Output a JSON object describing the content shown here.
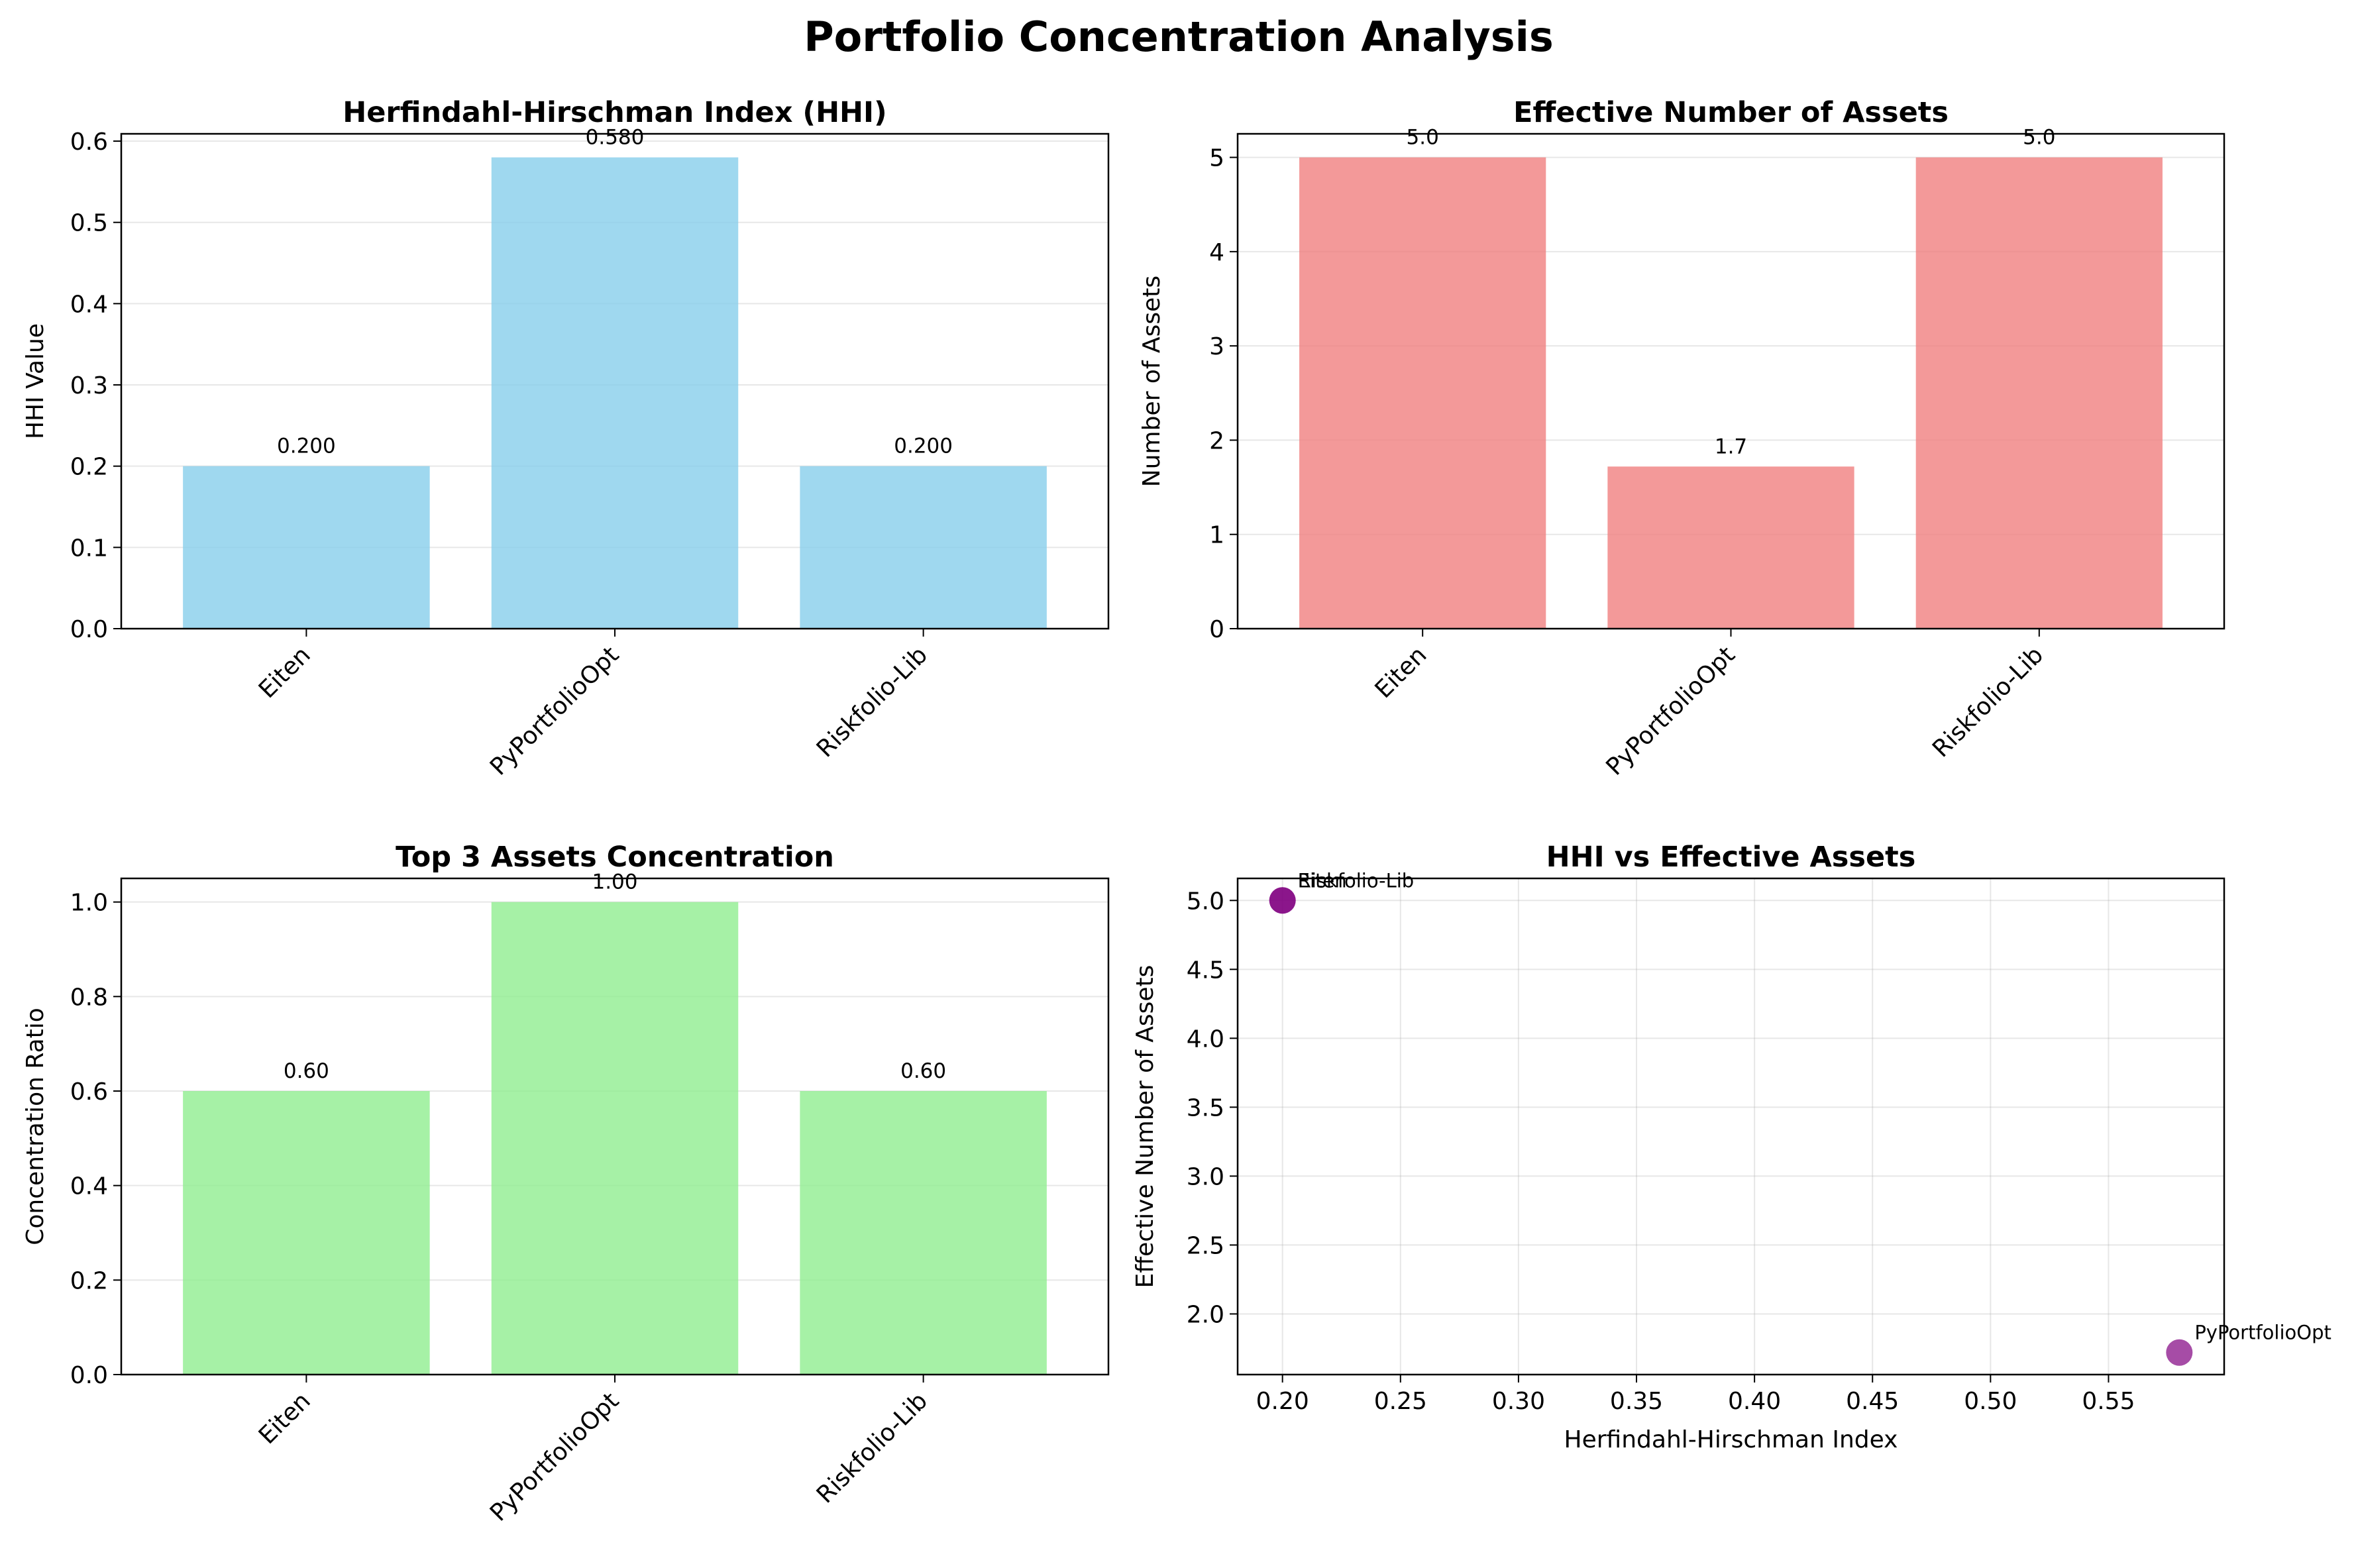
{
  "figure": {
    "title": "Portfolio Concentration Analysis"
  },
  "chart_data": [
    {
      "type": "bar",
      "title": "Herfindahl-Hirschman Index (HHI)",
      "xlabel": "",
      "ylabel": "HHI Value",
      "categories": [
        "Eiten",
        "PyPortfolioOpt",
        "Riskfolio-Lib"
      ],
      "values": [
        0.2,
        0.58,
        0.2
      ],
      "value_labels": [
        "0.200",
        "0.580",
        "0.200"
      ],
      "ylim": [
        0,
        0.609
      ],
      "yticks": [
        0,
        0.1,
        0.2,
        0.3,
        0.4,
        0.5,
        0.6
      ],
      "ytick_labels": [
        "0.0",
        "0.1",
        "0.2",
        "0.3",
        "0.4",
        "0.5",
        "0.6"
      ],
      "color": "#87ceeb",
      "grid": "y"
    },
    {
      "type": "bar",
      "title": "Effective Number of Assets",
      "xlabel": "",
      "ylabel": "Number of Assets",
      "categories": [
        "Eiten",
        "PyPortfolioOpt",
        "Riskfolio-Lib"
      ],
      "values": [
        5.0,
        1.72,
        5.0
      ],
      "value_labels": [
        "5.0",
        "1.7",
        "5.0"
      ],
      "ylim": [
        0,
        5.25
      ],
      "yticks": [
        0,
        1,
        2,
        3,
        4,
        5
      ],
      "ytick_labels": [
        "0",
        "1",
        "2",
        "3",
        "4",
        "5"
      ],
      "color": "#f08080",
      "grid": "y"
    },
    {
      "type": "bar",
      "title": "Top 3 Assets Concentration",
      "xlabel": "",
      "ylabel": "Concentration Ratio",
      "categories": [
        "Eiten",
        "PyPortfolioOpt",
        "Riskfolio-Lib"
      ],
      "values": [
        0.6,
        1.0,
        0.6
      ],
      "value_labels": [
        "0.60",
        "1.00",
        "0.60"
      ],
      "ylim": [
        0,
        1.05
      ],
      "yticks": [
        0,
        0.2,
        0.4,
        0.6,
        0.8,
        1.0
      ],
      "ytick_labels": [
        "0.0",
        "0.2",
        "0.4",
        "0.6",
        "0.8",
        "1.0"
      ],
      "color": "#90ee90",
      "grid": "y"
    },
    {
      "type": "scatter",
      "title": "HHI vs Effective Assets",
      "xlabel": "Herfindahl-Hirschman Index",
      "ylabel": "Effective Number of Assets",
      "points": [
        {
          "label": "Eiten",
          "x": 0.2,
          "y": 5.0
        },
        {
          "label": "PyPortfolioOpt",
          "x": 0.58,
          "y": 1.72
        },
        {
          "label": "Riskfolio-Lib",
          "x": 0.2,
          "y": 5.0
        }
      ],
      "xlim": [
        0.181,
        0.599
      ],
      "ylim": [
        1.56,
        5.16
      ],
      "xticks": [
        0.2,
        0.25,
        0.3,
        0.35,
        0.4,
        0.45,
        0.5,
        0.55
      ],
      "xtick_labels": [
        "0.20",
        "0.25",
        "0.30",
        "0.35",
        "0.40",
        "0.45",
        "0.50",
        "0.55"
      ],
      "yticks": [
        2.0,
        2.5,
        3.0,
        3.5,
        4.0,
        4.5,
        5.0
      ],
      "ytick_labels": [
        "2.0",
        "2.5",
        "3.0",
        "3.5",
        "4.0",
        "4.5",
        "5.0"
      ],
      "color": "#800080",
      "grid": "both"
    }
  ]
}
